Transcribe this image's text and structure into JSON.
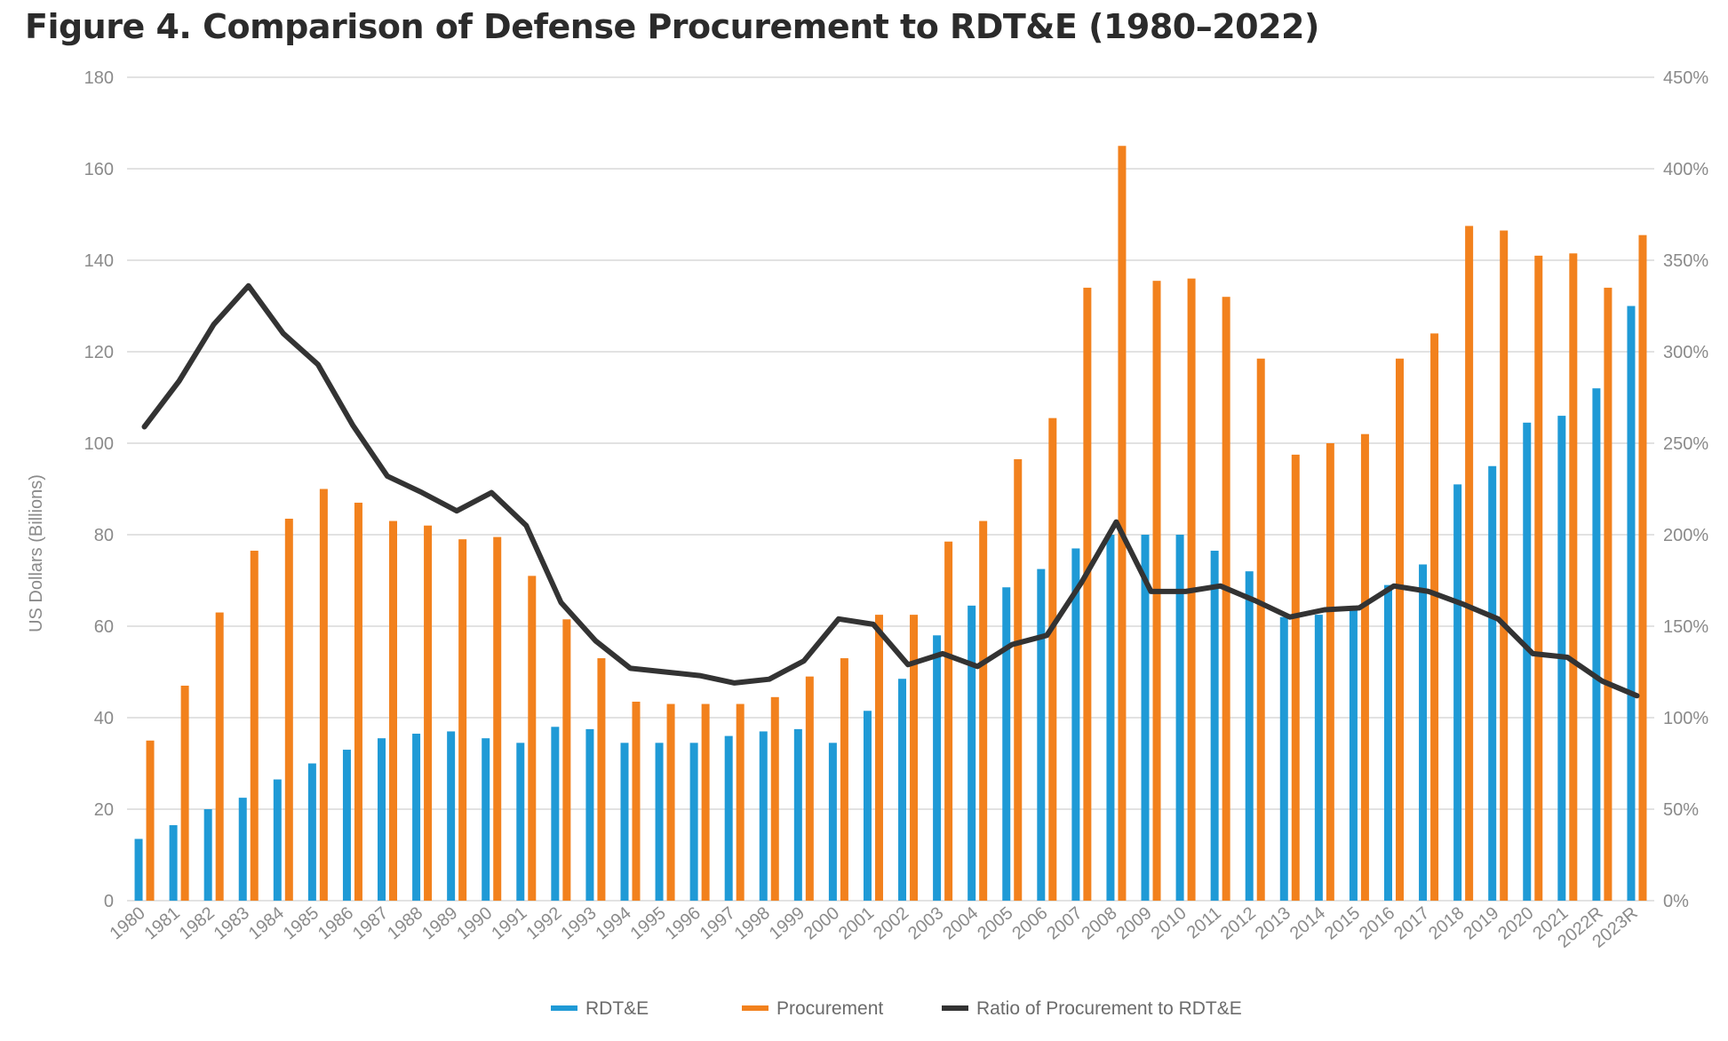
{
  "chart_data": {
    "type": "bar",
    "title": "Figure 4. Comparison of Defense Procurement to RDT&E (1980–2022)",
    "ylabel": "US Dollars (Billions)",
    "ylim": [
      0,
      180
    ],
    "y_ticks": [
      "0",
      "20",
      "40",
      "60",
      "80",
      "100",
      "120",
      "140",
      "160",
      "180"
    ],
    "y2lim": [
      0,
      4.5
    ],
    "y2_ticks": [
      "0%",
      "50%",
      "100%",
      "150%",
      "200%",
      "250%",
      "300%",
      "350%",
      "400%",
      "450%"
    ],
    "grid": true,
    "legend_position": "bottom",
    "categories": [
      "1980",
      "1981",
      "1982",
      "1983",
      "1984",
      "1985",
      "1986",
      "1987",
      "1988",
      "1989",
      "1990",
      "1991",
      "1992",
      "1993",
      "1994",
      "1995",
      "1996",
      "1997",
      "1998",
      "1999",
      "2000",
      "2001",
      "2002",
      "2003",
      "2004",
      "2005",
      "2006",
      "2007",
      "2008",
      "2009",
      "2010",
      "2011",
      "2012",
      "2013",
      "2014",
      "2015",
      "2016",
      "2017",
      "2018",
      "2019",
      "2020",
      "2021",
      "2022R",
      "2023R"
    ],
    "series": [
      {
        "name": "RDT&E",
        "type": "bar",
        "axis": "left",
        "color": "#1f9ad6",
        "values": [
          13.5,
          16.5,
          20,
          22.5,
          26.5,
          30,
          33,
          35.5,
          36.5,
          37,
          35.5,
          34.5,
          38,
          37.5,
          34.5,
          34.5,
          34.5,
          36,
          37,
          37.5,
          34.5,
          41.5,
          48.5,
          58,
          64.5,
          68.5,
          72.5,
          77,
          80,
          80,
          80,
          76.5,
          72,
          62,
          62.5,
          63.5,
          69,
          73.5,
          91,
          95,
          104.5,
          106,
          112,
          130
        ]
      },
      {
        "name": "Procurement",
        "type": "bar",
        "axis": "left",
        "color": "#f2811d",
        "values": [
          35,
          47,
          63,
          76.5,
          83.5,
          90,
          87,
          83,
          82,
          79,
          79.5,
          71,
          61.5,
          53,
          43.5,
          43,
          43,
          43,
          44.5,
          49,
          53,
          62.5,
          62.5,
          78.5,
          83,
          96.5,
          105.5,
          134,
          165,
          135.5,
          136,
          132,
          118.5,
          97.5,
          100,
          102,
          118.5,
          124,
          147.5,
          146.5,
          141,
          141.5,
          134,
          145.5
        ]
      },
      {
        "name": "Ratio of Procurement to RDT&E",
        "type": "line",
        "axis": "right",
        "color": "#333333",
        "values": [
          2.59,
          2.84,
          3.15,
          3.36,
          3.1,
          2.93,
          2.6,
          2.32,
          2.23,
          2.13,
          2.23,
          2.05,
          1.63,
          1.42,
          1.27,
          1.25,
          1.23,
          1.19,
          1.21,
          1.31,
          1.54,
          1.51,
          1.29,
          1.35,
          1.28,
          1.4,
          1.45,
          1.74,
          2.07,
          1.69,
          1.69,
          1.72,
          1.64,
          1.55,
          1.59,
          1.6,
          1.72,
          1.69,
          1.62,
          1.54,
          1.35,
          1.33,
          1.2,
          1.12
        ]
      }
    ]
  }
}
